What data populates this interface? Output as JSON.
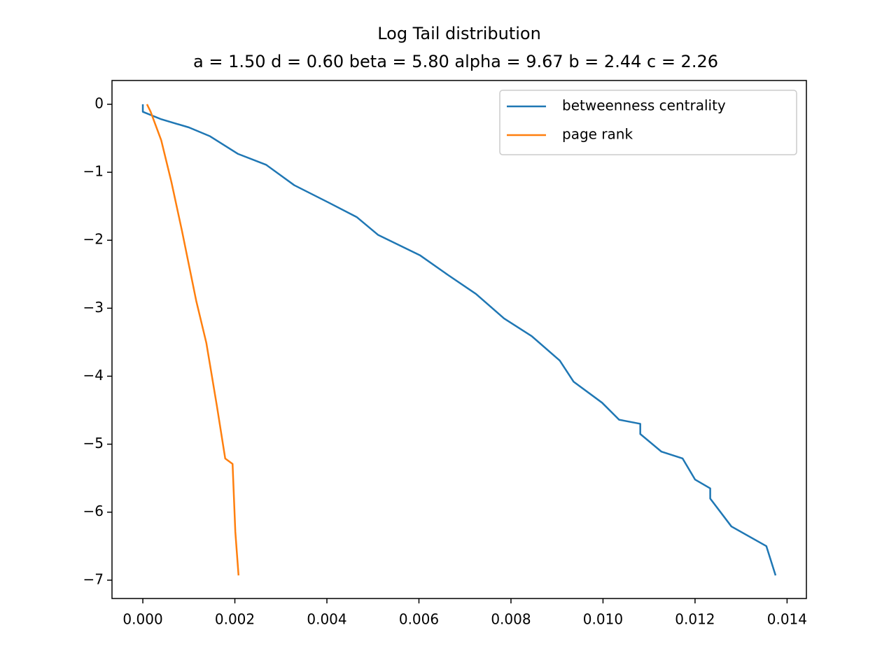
{
  "chart_data": {
    "type": "line",
    "title": "Log Tail distribution",
    "subtitle": "a = 1.50 d = 0.60 beta = 5.80 alpha = 9.67 b = 2.44 c = 2.26",
    "series": [
      {
        "name": "betweenness centrality",
        "color": "#1f77b4",
        "x": [
          0,
          0,
          0.0004,
          0.001,
          0.00146,
          0.00207,
          0.00268,
          0.00329,
          0.00405,
          0.00465,
          0.00511,
          0.00602,
          0.00663,
          0.00724,
          0.00785,
          0.00845,
          0.00906,
          0.00936,
          0.00998,
          0.01035,
          0.01081,
          0.01081,
          0.01127,
          0.01173,
          0.012,
          0.01233,
          0.01233,
          0.01279,
          0.01355,
          0.01375
        ],
        "values": [
          0,
          -0.11,
          -0.22,
          -0.34,
          -0.47,
          -0.73,
          -0.89,
          -1.19,
          -1.45,
          -1.66,
          -1.92,
          -2.22,
          -2.51,
          -2.79,
          -3.15,
          -3.41,
          -3.77,
          -4.08,
          -4.39,
          -4.64,
          -4.7,
          -4.85,
          -5.11,
          -5.21,
          -5.52,
          -5.65,
          -5.8,
          -6.21,
          -6.5,
          -6.93
        ]
      },
      {
        "name": "page rank",
        "color": "#ff7f0e",
        "x": [
          9e-05,
          0.00017,
          0.0004,
          0.00062,
          0.00085,
          0.00116,
          0.00138,
          0.00161,
          0.00179,
          0.00195,
          0.00201,
          0.00208
        ],
        "values": [
          0,
          -0.11,
          -0.53,
          -1.14,
          -1.86,
          -2.89,
          -3.51,
          -4.44,
          -5.21,
          -5.29,
          -6.29,
          -6.93
        ]
      }
    ],
    "xlim": [
      -0.00067,
      0.01442
    ],
    "xticks": [
      {
        "value": 0,
        "label": "0.000"
      },
      {
        "value": 0.002,
        "label": "0.002"
      },
      {
        "value": 0.004,
        "label": "0.004"
      },
      {
        "value": 0.006,
        "label": "0.006"
      },
      {
        "value": 0.008,
        "label": "0.008"
      },
      {
        "value": 0.01,
        "label": "0.010"
      },
      {
        "value": 0.012,
        "label": "0.012"
      },
      {
        "value": 0.014,
        "label": "0.014"
      }
    ],
    "ylim": [
      -7.27,
      0.35
    ],
    "yticks": [
      0,
      {
        "value": -1,
        "label": "−1"
      },
      {
        "value": -2,
        "label": "−2"
      },
      {
        "value": -3,
        "label": "−3"
      },
      {
        "value": -4,
        "label": "−4"
      },
      {
        "value": -5,
        "label": "−5"
      },
      {
        "value": -6,
        "label": "−6"
      },
      {
        "value": -7,
        "label": "−7"
      }
    ],
    "legend": "upper right"
  }
}
